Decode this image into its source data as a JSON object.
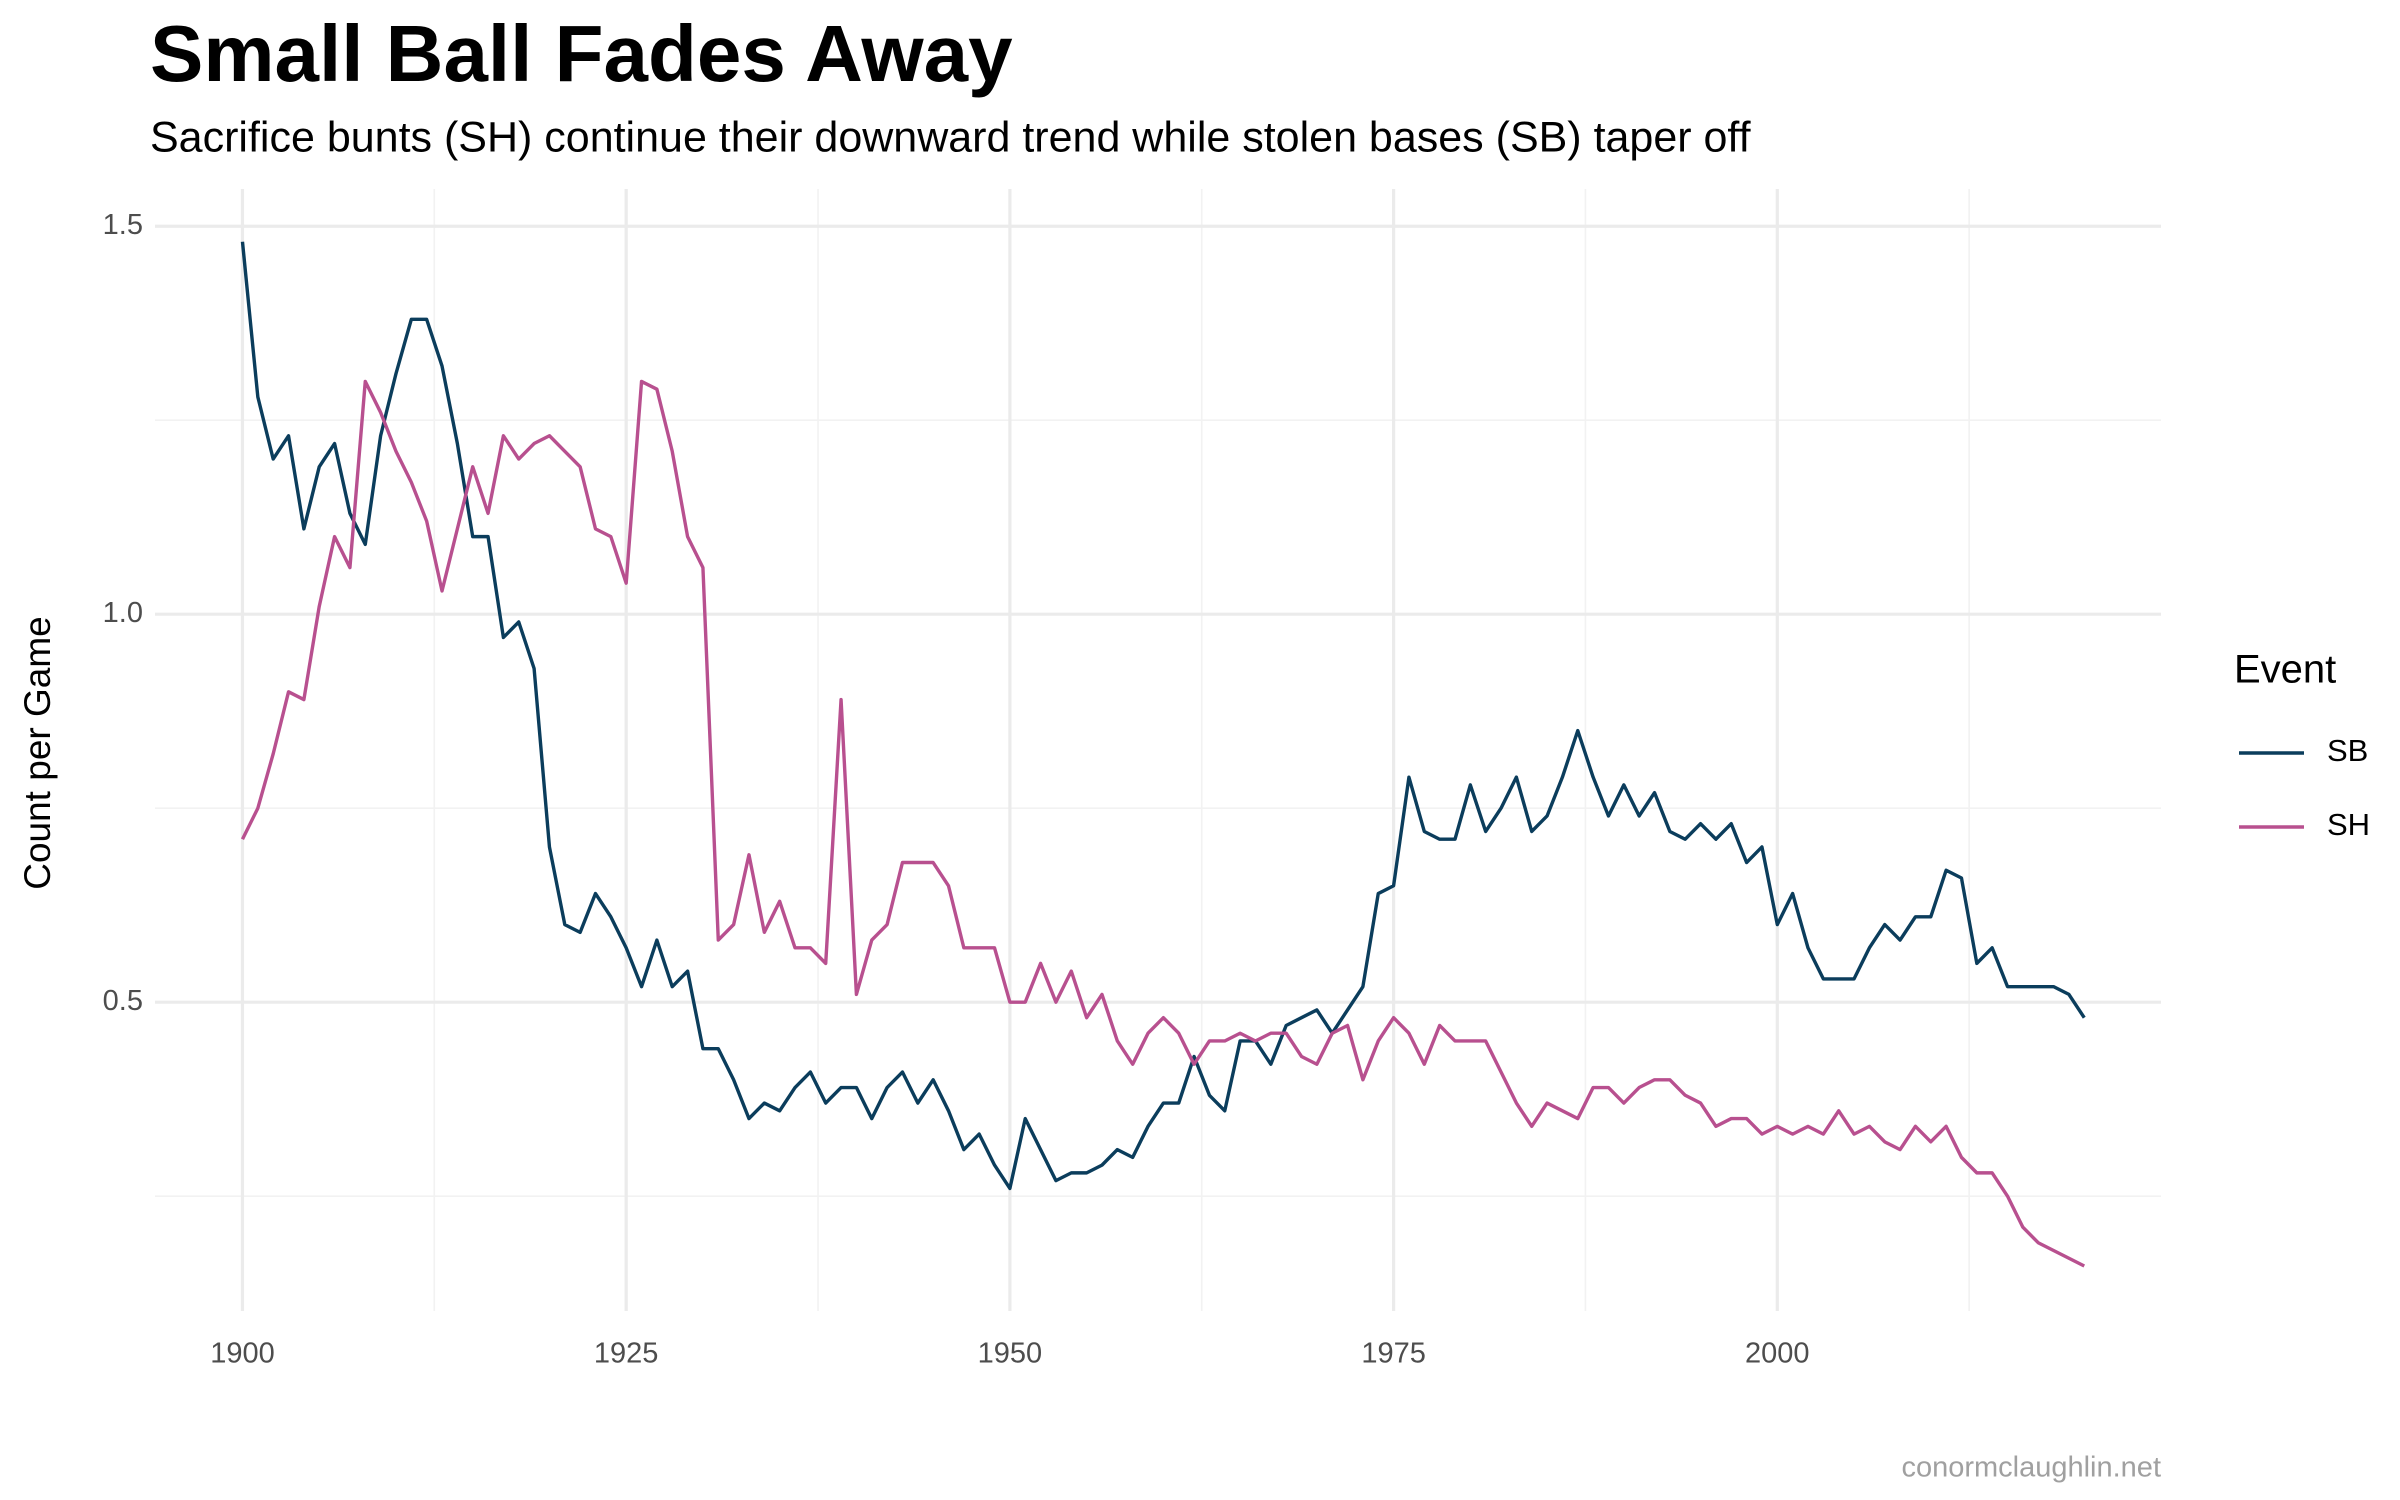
{
  "chart_data": {
    "type": "line",
    "title": "Small Ball Fades Away",
    "subtitle": "Sacrifice bunts (SH) continue their downward trend while stolen bases (SB) taper off",
    "y_label": "Count per Game",
    "legend_title": "Event",
    "legend_position": "right",
    "caption": "conormclaughlin.net",
    "grid": true,
    "xlim": [
      1894.3,
      2025
    ],
    "ylim": [
      0.102,
      1.548
    ],
    "xticks": [
      1900,
      1925,
      1950,
      1975,
      2000
    ],
    "yticks": [
      0.5,
      {
        "value": 1.0,
        "label": "1.0"
      },
      1.5
    ],
    "x_minor_ticks": [
      1912.5,
      1937.5,
      1962.5,
      1987.5,
      2012.5
    ],
    "y_minor_ticks": [
      0.25,
      0.75,
      1.25
    ],
    "x": [
      1900,
      1901,
      1902,
      1903,
      1904,
      1905,
      1906,
      1907,
      1908,
      1909,
      1910,
      1911,
      1912,
      1913,
      1914,
      1915,
      1916,
      1917,
      1918,
      1919,
      1920,
      1921,
      1922,
      1923,
      1924,
      1925,
      1926,
      1927,
      1928,
      1929,
      1930,
      1931,
      1932,
      1933,
      1934,
      1935,
      1936,
      1937,
      1938,
      1939,
      1940,
      1941,
      1942,
      1943,
      1944,
      1945,
      1946,
      1947,
      1948,
      1949,
      1950,
      1951,
      1952,
      1953,
      1954,
      1955,
      1956,
      1957,
      1958,
      1959,
      1960,
      1961,
      1962,
      1963,
      1964,
      1965,
      1966,
      1967,
      1968,
      1969,
      1970,
      1971,
      1972,
      1973,
      1974,
      1975,
      1976,
      1977,
      1978,
      1979,
      1980,
      1981,
      1982,
      1983,
      1984,
      1985,
      1986,
      1987,
      1988,
      1989,
      1990,
      1991,
      1992,
      1993,
      1994,
      1995,
      1996,
      1997,
      1998,
      1999,
      2000,
      2001,
      2002,
      2003,
      2004,
      2005,
      2006,
      2007,
      2008,
      2009,
      2010,
      2011,
      2012,
      2013,
      2014,
      2015,
      2016,
      2017,
      2018,
      2019,
      2020
    ],
    "series": [
      {
        "name": "SB",
        "color": "#0b3d5c",
        "values": [
          1.48,
          1.28,
          1.2,
          1.23,
          1.11,
          1.19,
          1.22,
          1.13,
          1.09,
          1.23,
          1.31,
          1.38,
          1.38,
          1.32,
          1.22,
          1.1,
          1.1,
          0.97,
          0.99,
          0.93,
          0.7,
          0.6,
          0.59,
          0.64,
          0.61,
          0.57,
          0.52,
          0.58,
          0.52,
          0.54,
          0.44,
          0.44,
          0.4,
          0.35,
          0.37,
          0.36,
          0.39,
          0.41,
          0.37,
          0.39,
          0.39,
          0.35,
          0.39,
          0.41,
          0.37,
          0.4,
          0.36,
          0.31,
          0.33,
          0.29,
          0.26,
          0.35,
          0.31,
          0.27,
          0.28,
          0.28,
          0.29,
          0.31,
          0.3,
          0.34,
          0.37,
          0.37,
          0.43,
          0.38,
          0.36,
          0.45,
          0.45,
          0.42,
          0.47,
          0.48,
          0.49,
          0.46,
          0.49,
          0.52,
          0.64,
          0.65,
          0.79,
          0.72,
          0.71,
          0.71,
          0.78,
          0.72,
          0.75,
          0.79,
          0.72,
          0.74,
          0.79,
          0.85,
          0.79,
          0.74,
          0.78,
          0.74,
          0.77,
          0.72,
          0.71,
          0.73,
          0.71,
          0.73,
          0.68,
          0.7,
          0.6,
          0.64,
          0.57,
          0.53,
          0.53,
          0.53,
          0.57,
          0.6,
          0.58,
          0.61,
          0.61,
          0.67,
          0.66,
          0.55,
          0.57,
          0.52,
          0.52,
          0.52,
          0.52,
          0.51,
          0.48
        ]
      },
      {
        "name": "SH",
        "color": "#b8508f",
        "values": [
          0.71,
          0.75,
          0.82,
          0.9,
          0.89,
          1.01,
          1.1,
          1.06,
          1.3,
          1.26,
          1.21,
          1.17,
          1.12,
          1.03,
          1.11,
          1.19,
          1.13,
          1.23,
          1.2,
          1.22,
          1.23,
          1.21,
          1.19,
          1.11,
          1.1,
          1.04,
          1.3,
          1.29,
          1.21,
          1.1,
          1.06,
          0.58,
          0.6,
          0.69,
          0.59,
          0.63,
          0.57,
          0.57,
          0.55,
          0.89,
          0.51,
          0.58,
          0.6,
          0.68,
          0.68,
          0.68,
          0.65,
          0.57,
          0.57,
          0.57,
          0.5,
          0.5,
          0.55,
          0.5,
          0.54,
          0.48,
          0.51,
          0.45,
          0.42,
          0.46,
          0.48,
          0.46,
          0.42,
          0.45,
          0.45,
          0.46,
          0.45,
          0.46,
          0.46,
          0.43,
          0.42,
          0.46,
          0.47,
          0.4,
          0.45,
          0.48,
          0.46,
          0.42,
          0.47,
          0.45,
          0.45,
          0.45,
          0.41,
          0.37,
          0.34,
          0.37,
          0.36,
          0.35,
          0.39,
          0.39,
          0.37,
          0.39,
          0.4,
          0.4,
          0.38,
          0.37,
          0.34,
          0.35,
          0.35,
          0.33,
          0.34,
          0.33,
          0.34,
          0.33,
          0.36,
          0.33,
          0.34,
          0.32,
          0.31,
          0.34,
          0.32,
          0.34,
          0.3,
          0.28,
          0.28,
          0.25,
          0.21,
          0.19,
          0.18,
          0.17,
          0.16
        ]
      }
    ]
  }
}
